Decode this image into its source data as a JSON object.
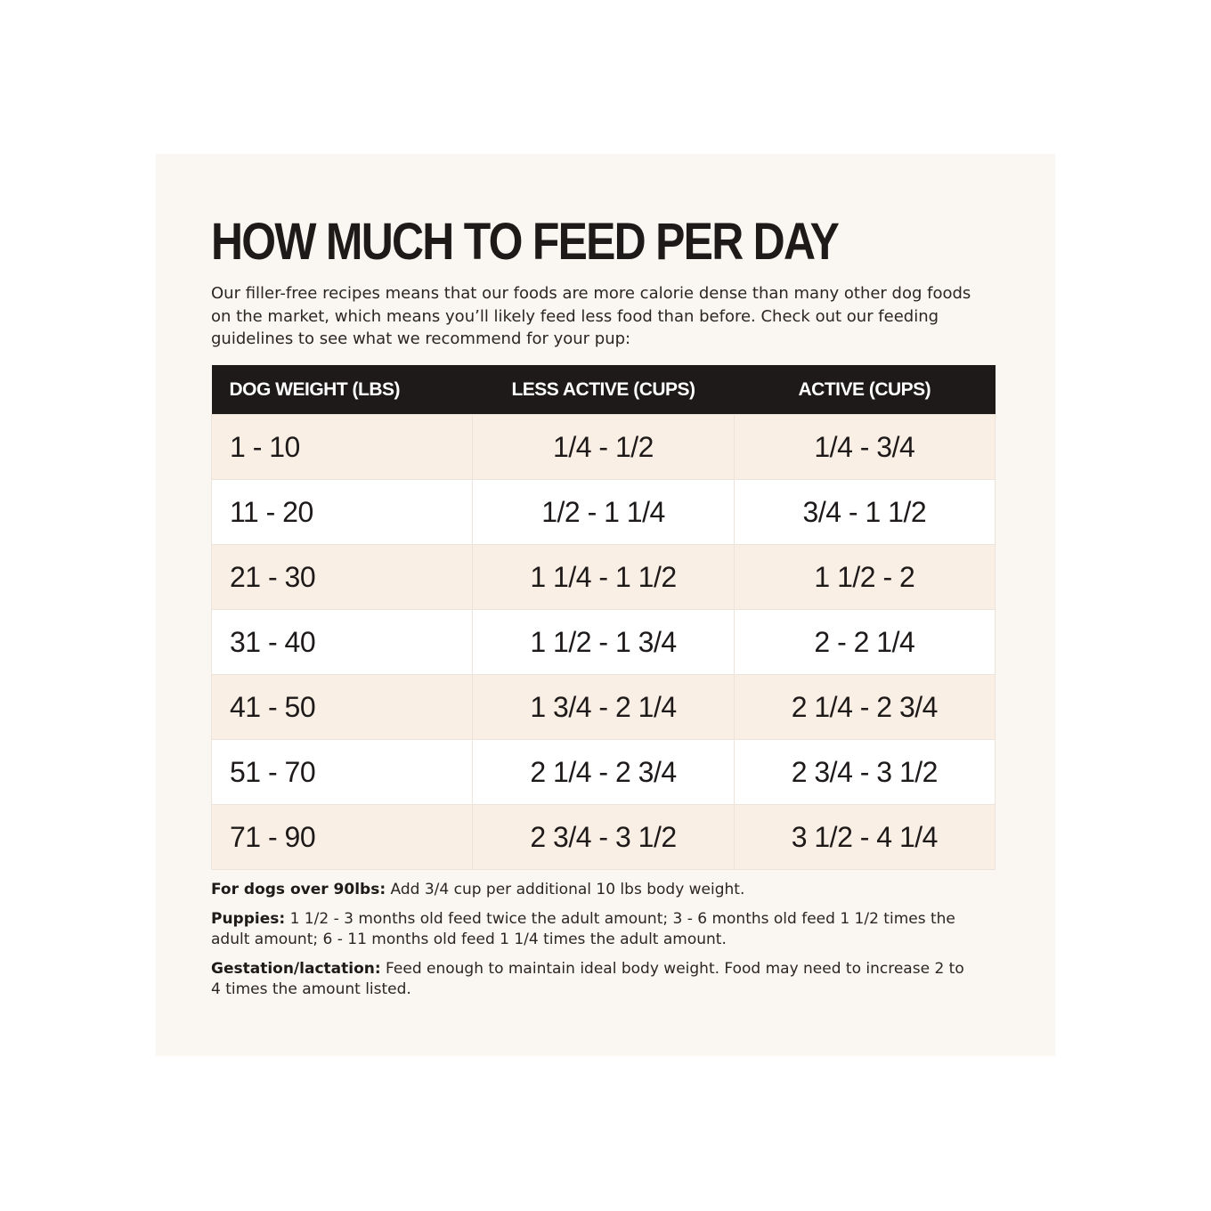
{
  "title": "HOW MUCH TO FEED PER DAY",
  "intro": "Our filler-free recipes means that our foods are more calorie dense than many other dog foods on the market, which means you’ll likely feed less food than before. Check out our feeding guidelines to see what we recommend for your pup:",
  "table": {
    "headers": [
      "DOG WEIGHT (LBS)",
      "LESS ACTIVE (CUPS)",
      "ACTIVE (CUPS)"
    ],
    "rows": [
      {
        "weight": "1 - 10",
        "less_active": "1/4 - 1/2",
        "active": "1/4 - 3/4"
      },
      {
        "weight": "11 - 20",
        "less_active": "1/2 - 1 1/4",
        "active": "3/4 - 1 1/2"
      },
      {
        "weight": "21 - 30",
        "less_active": "1 1/4 - 1 1/2",
        "active": "1 1/2 - 2"
      },
      {
        "weight": "31 - 40",
        "less_active": "1 1/2 - 1 3/4",
        "active": "2 - 2 1/4"
      },
      {
        "weight": "41 - 50",
        "less_active": "1 3/4 - 2 1/4",
        "active": "2 1/4 - 2 3/4"
      },
      {
        "weight": "51 - 70",
        "less_active": "2 1/4 - 2 3/4",
        "active": "2 3/4 - 3 1/2"
      },
      {
        "weight": "71 - 90",
        "less_active": "2 3/4 - 3 1/2",
        "active": "3 1/2 - 4 1/4"
      }
    ]
  },
  "notes": [
    {
      "label": "For dogs over 90lbs:",
      "text": " Add 3/4 cup per additional 10 lbs body weight."
    },
    {
      "label": "Puppies:",
      "text": " 1 1/2 - 3 months old feed twice the adult amount; 3 - 6 months old feed 1 1/2 times the adult amount; 6 - 11 months old feed 1 1/4 times the adult amount."
    },
    {
      "label": "Gestation/lactation:",
      "text": " Feed enough to maintain ideal body weight. Food may need to increase 2 to 4 times the amount listed."
    }
  ],
  "colors": {
    "card_background": "#faf6f1",
    "header_background": "#1e1a19",
    "shaded_row": "#faefe5",
    "plain_row": "#ffffff",
    "text": "#1e1a19"
  }
}
